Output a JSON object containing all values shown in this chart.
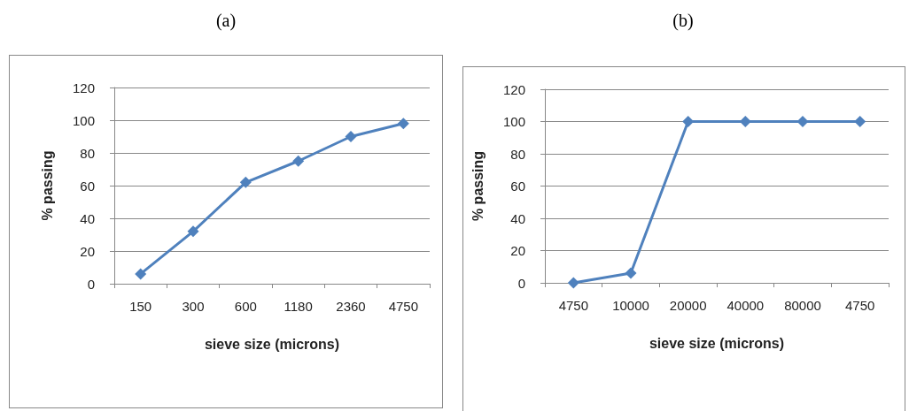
{
  "chart_data": [
    {
      "type": "line",
      "title": "(a)",
      "xlabel": "sieve size (microns)",
      "ylabel": "% passing",
      "categories": [
        "150",
        "300",
        "600",
        "1180",
        "2360",
        "4750"
      ],
      "series": [
        {
          "color": "#4f81bd",
          "values": [
            6,
            32,
            62,
            75,
            90,
            98
          ]
        }
      ],
      "ylim": [
        0,
        120
      ],
      "yticks": [
        0,
        20,
        40,
        60,
        80,
        100,
        120
      ],
      "grid": "y",
      "marker": "diamond",
      "line_style": "solid"
    },
    {
      "type": "line",
      "title": "(b)",
      "xlabel": "sieve size (microns)",
      "ylabel": "% passing",
      "categories": [
        "4750",
        "10000",
        "20000",
        "40000",
        "80000",
        "4750"
      ],
      "series": [
        {
          "color": "#4f81bd",
          "values": [
            0,
            6,
            100,
            100,
            100,
            100
          ]
        }
      ],
      "ylim": [
        0,
        120
      ],
      "yticks": [
        0,
        20,
        40,
        60,
        80,
        100,
        120
      ],
      "grid": "y",
      "marker": "diamond",
      "line_style": "solid"
    }
  ]
}
